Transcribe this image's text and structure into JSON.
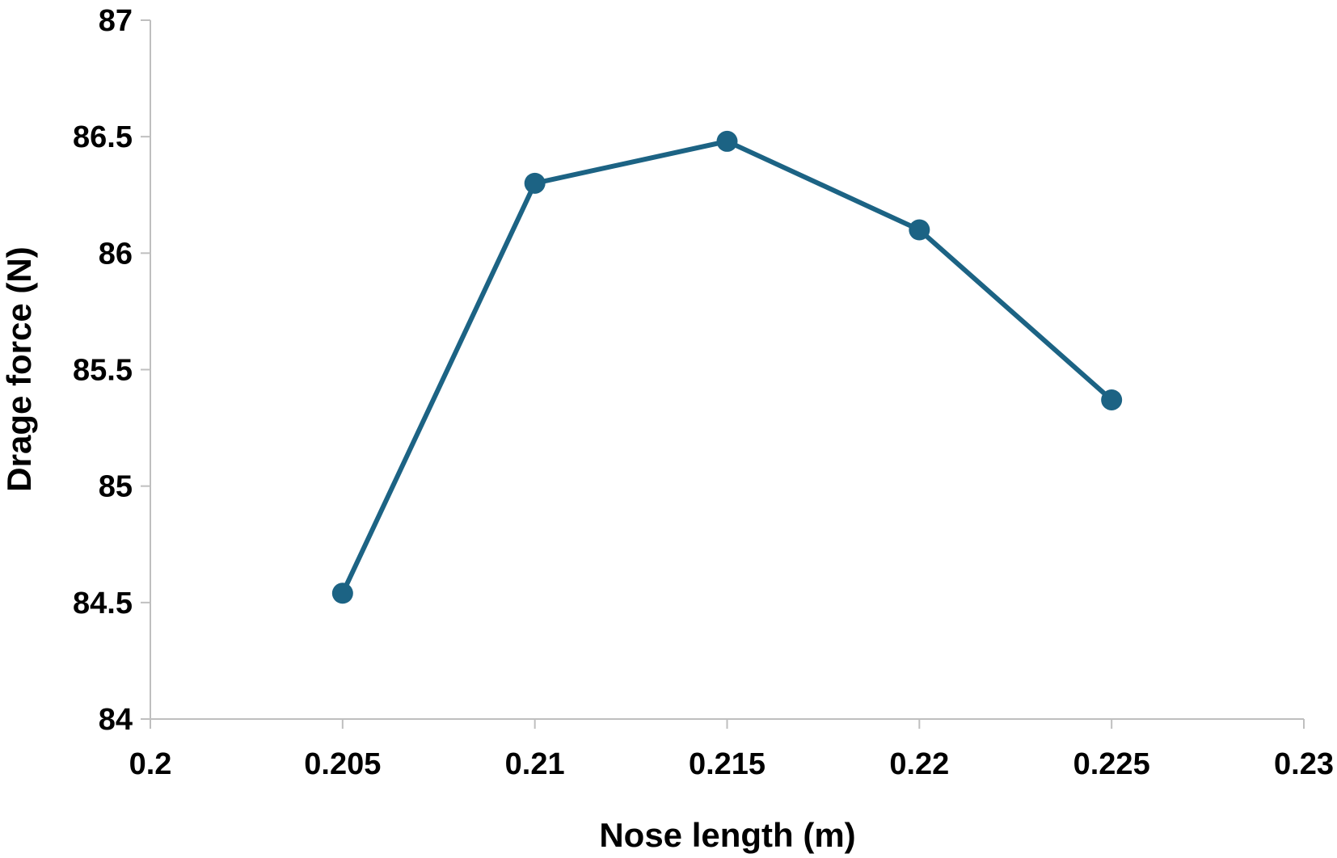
{
  "chart_data": {
    "type": "line",
    "title": "",
    "xlabel": "Nose length (m)",
    "ylabel": "Drage force (N)",
    "xlim": [
      0.2,
      0.23
    ],
    "ylim": [
      84,
      87
    ],
    "x_ticks": [
      "0.2",
      "0.205",
      "0.21",
      "0.215",
      "0.22",
      "0.225",
      "0.23"
    ],
    "y_ticks": [
      "84",
      "84.5",
      "85",
      "85.5",
      "86",
      "86.5",
      "87"
    ],
    "grid": false,
    "legend": "none",
    "series": [
      {
        "color": "#1c6384",
        "x": [
          0.205,
          0.21,
          0.215,
          0.22,
          0.225
        ],
        "y": [
          84.54,
          86.3,
          86.48,
          86.1,
          85.37
        ]
      }
    ]
  }
}
